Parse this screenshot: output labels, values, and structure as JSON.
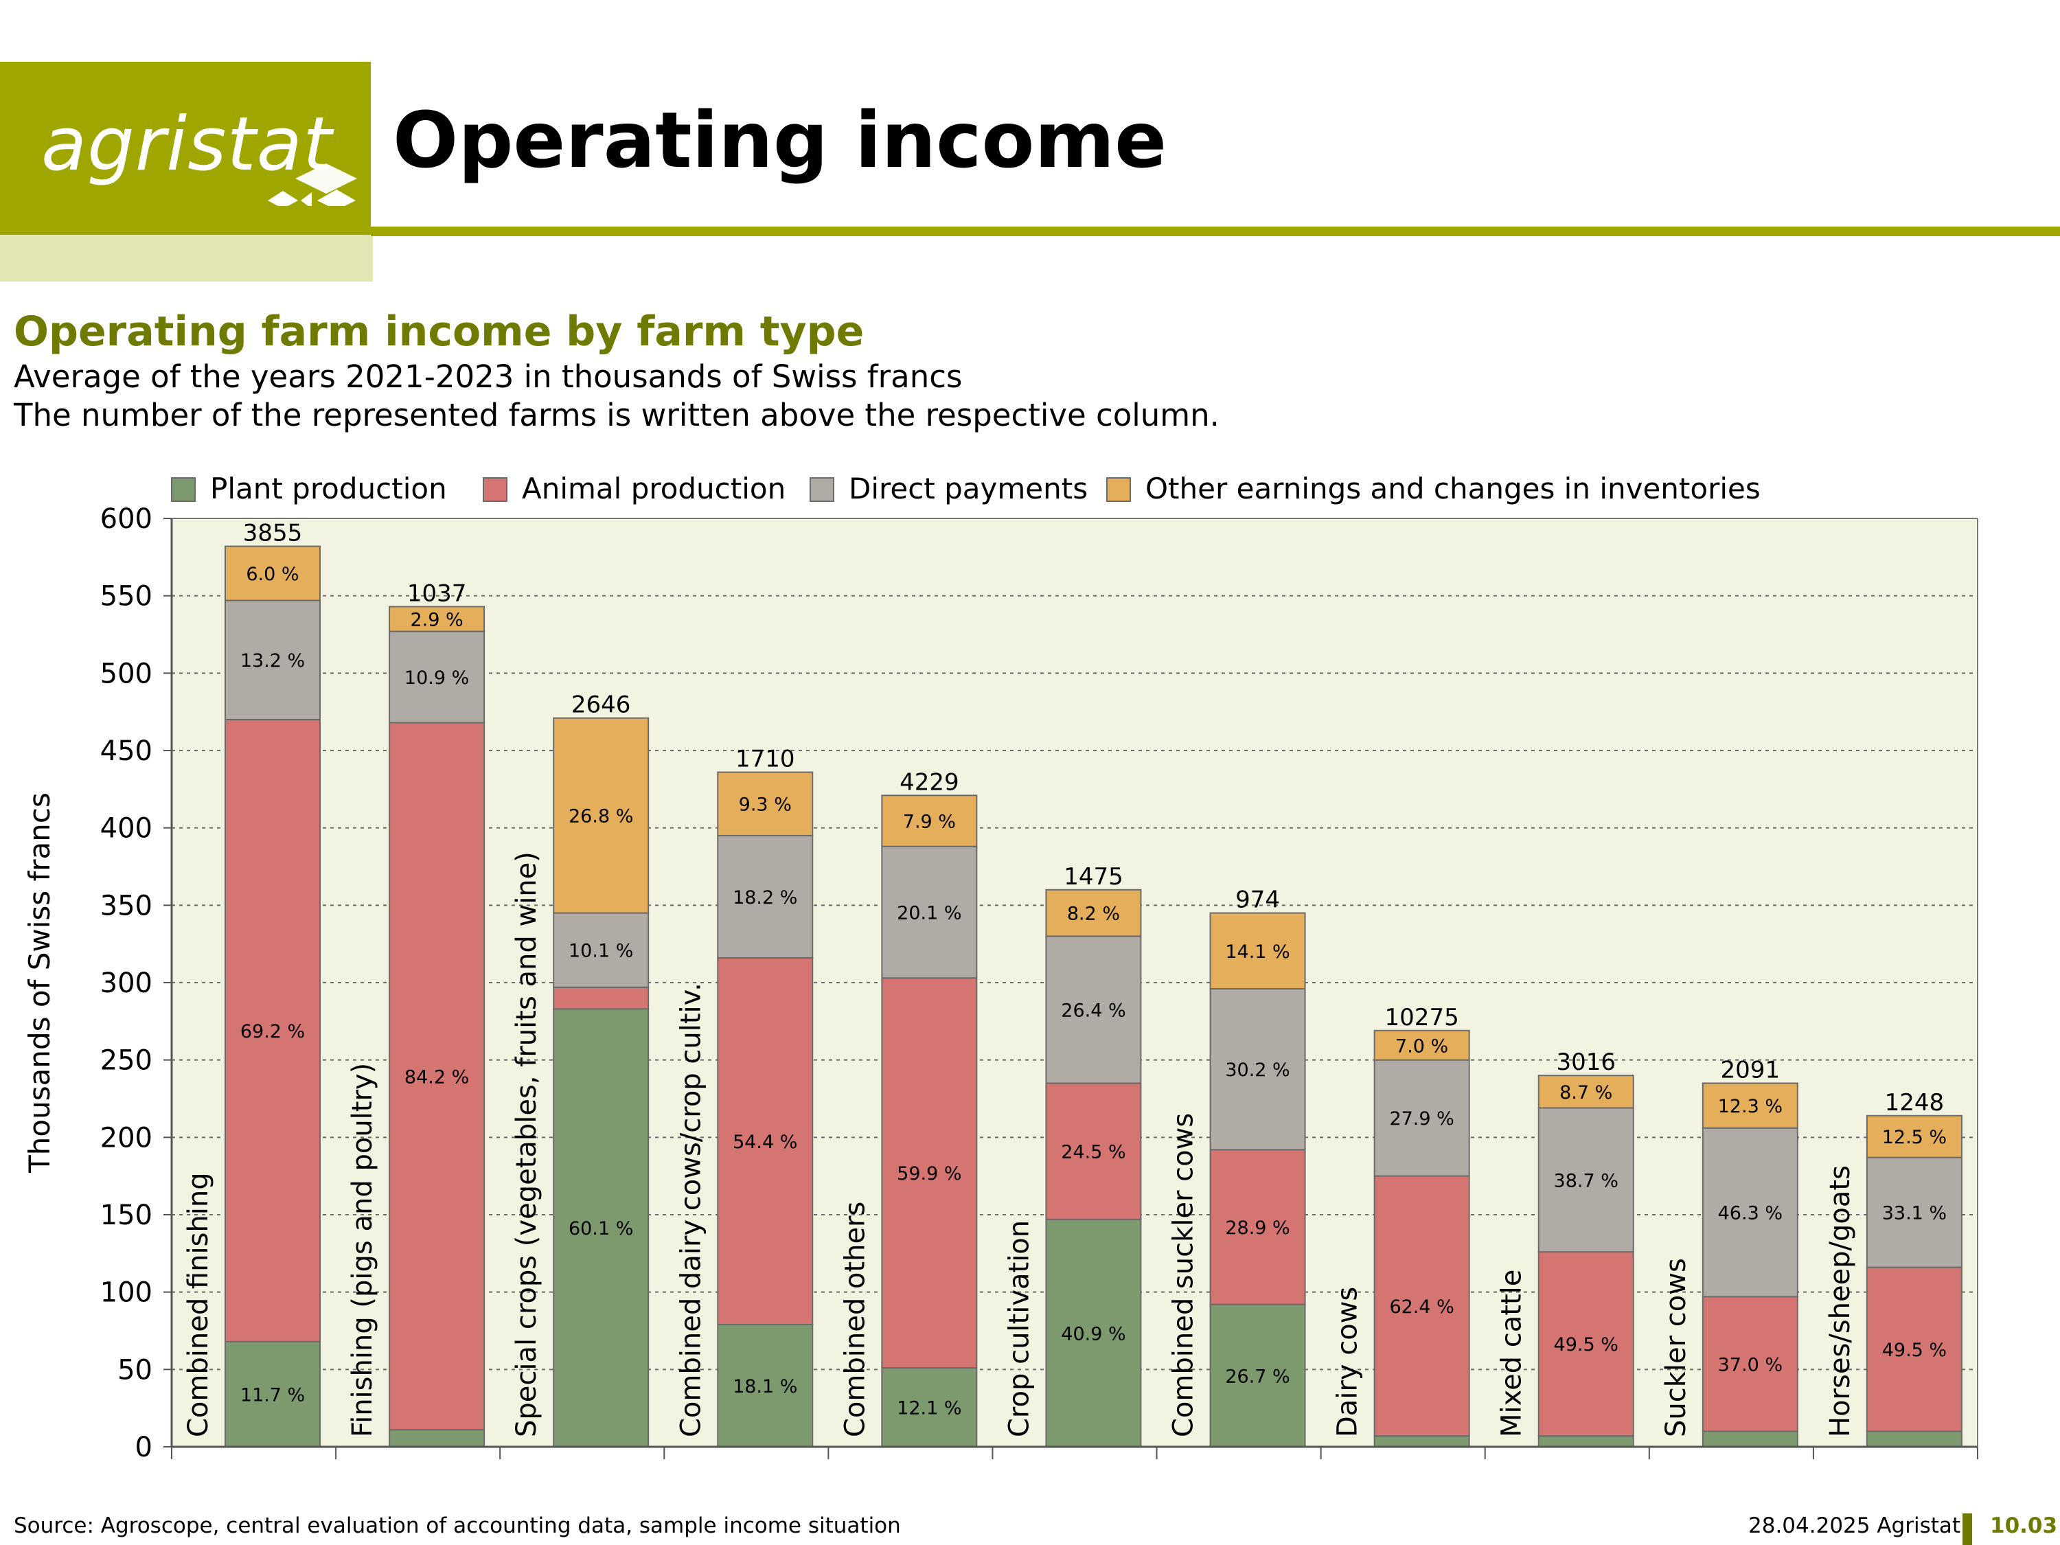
{
  "header": {
    "logo_text": "agristat",
    "page_title": "Operating income"
  },
  "footer": {
    "source": "Source: Agroscope, central evaluation of accounting data, sample income situation",
    "date": "28.04.2025 Agristat",
    "page_number": "10.03"
  },
  "chart_data": {
    "type": "bar",
    "stacked": true,
    "title": "Operating farm income by farm type",
    "subtitle": [
      "Average of the years 2021-2023 in thousands of Swiss francs",
      "The number of the represented farms is written above the respective column."
    ],
    "xlabel": "",
    "ylabel": "Thousands of Swiss francs",
    "ylim": [
      0,
      600
    ],
    "yticks": [
      0,
      50,
      100,
      150,
      200,
      250,
      300,
      350,
      400,
      450,
      500,
      550,
      600
    ],
    "grid": true,
    "legend_position": "top",
    "colors": {
      "background": "#f3f3e2",
      "plant": "#7c9a6e",
      "animal": "#d47571",
      "direct": "#b1aba6",
      "other": "#e5ae5a"
    },
    "categories": [
      "Combined finishing",
      "Finishing (pigs and poultry)",
      "Special crops (vegetables, fruits and wine)",
      "Combined dairy cows/crop cultiv.",
      "Combined others",
      "Crop cultivation",
      "Combined suckler cows",
      "Dairy cows",
      "Mixed cattle",
      "Suckler cows",
      "Horses/sheep/goats"
    ],
    "farm_counts": [
      "3855",
      "1037",
      "2646",
      "1710",
      "4229",
      "1475",
      "974",
      "10275",
      "3016",
      "2091",
      "1248"
    ],
    "series": [
      {
        "name": "Plant production",
        "key": "plant",
        "values": [
          68,
          11,
          283,
          79,
          51,
          147,
          92,
          7,
          7,
          10,
          10
        ],
        "labels": [
          "11.7 %",
          "",
          "60.1 %",
          "18.1 %",
          "12.1 %",
          "40.9 %",
          "26.7 %",
          "",
          "",
          "",
          ""
        ]
      },
      {
        "name": "Animal production",
        "key": "animal",
        "values": [
          402,
          457,
          14,
          237,
          252,
          88,
          100,
          168,
          119,
          87,
          106
        ],
        "labels": [
          "69.2 %",
          "84.2 %",
          "",
          "54.4 %",
          "59.9 %",
          "24.5 %",
          "28.9 %",
          "62.4 %",
          "49.5 %",
          "37.0 %",
          "49.5 %"
        ]
      },
      {
        "name": "Direct payments",
        "key": "direct",
        "values": [
          77,
          59,
          48,
          79,
          85,
          95,
          104,
          75,
          93,
          109,
          71
        ],
        "labels": [
          "13.2 %",
          "10.9 %",
          "10.1 %",
          "18.2 %",
          "20.1 %",
          "26.4 %",
          "30.2 %",
          "27.9 %",
          "38.7 %",
          "46.3 %",
          "33.1 %"
        ]
      },
      {
        "name": "Other earnings and changes in inventories",
        "key": "other",
        "values": [
          35,
          16,
          126,
          41,
          33,
          30,
          49,
          19,
          21,
          29,
          27
        ],
        "labels": [
          "6.0 %",
          "2.9 %",
          "26.8 %",
          "9.3 %",
          "7.9 %",
          "8.2 %",
          "14.1 %",
          "7.0 %",
          "8.7 %",
          "12.3 %",
          "12.5 %"
        ]
      }
    ]
  }
}
